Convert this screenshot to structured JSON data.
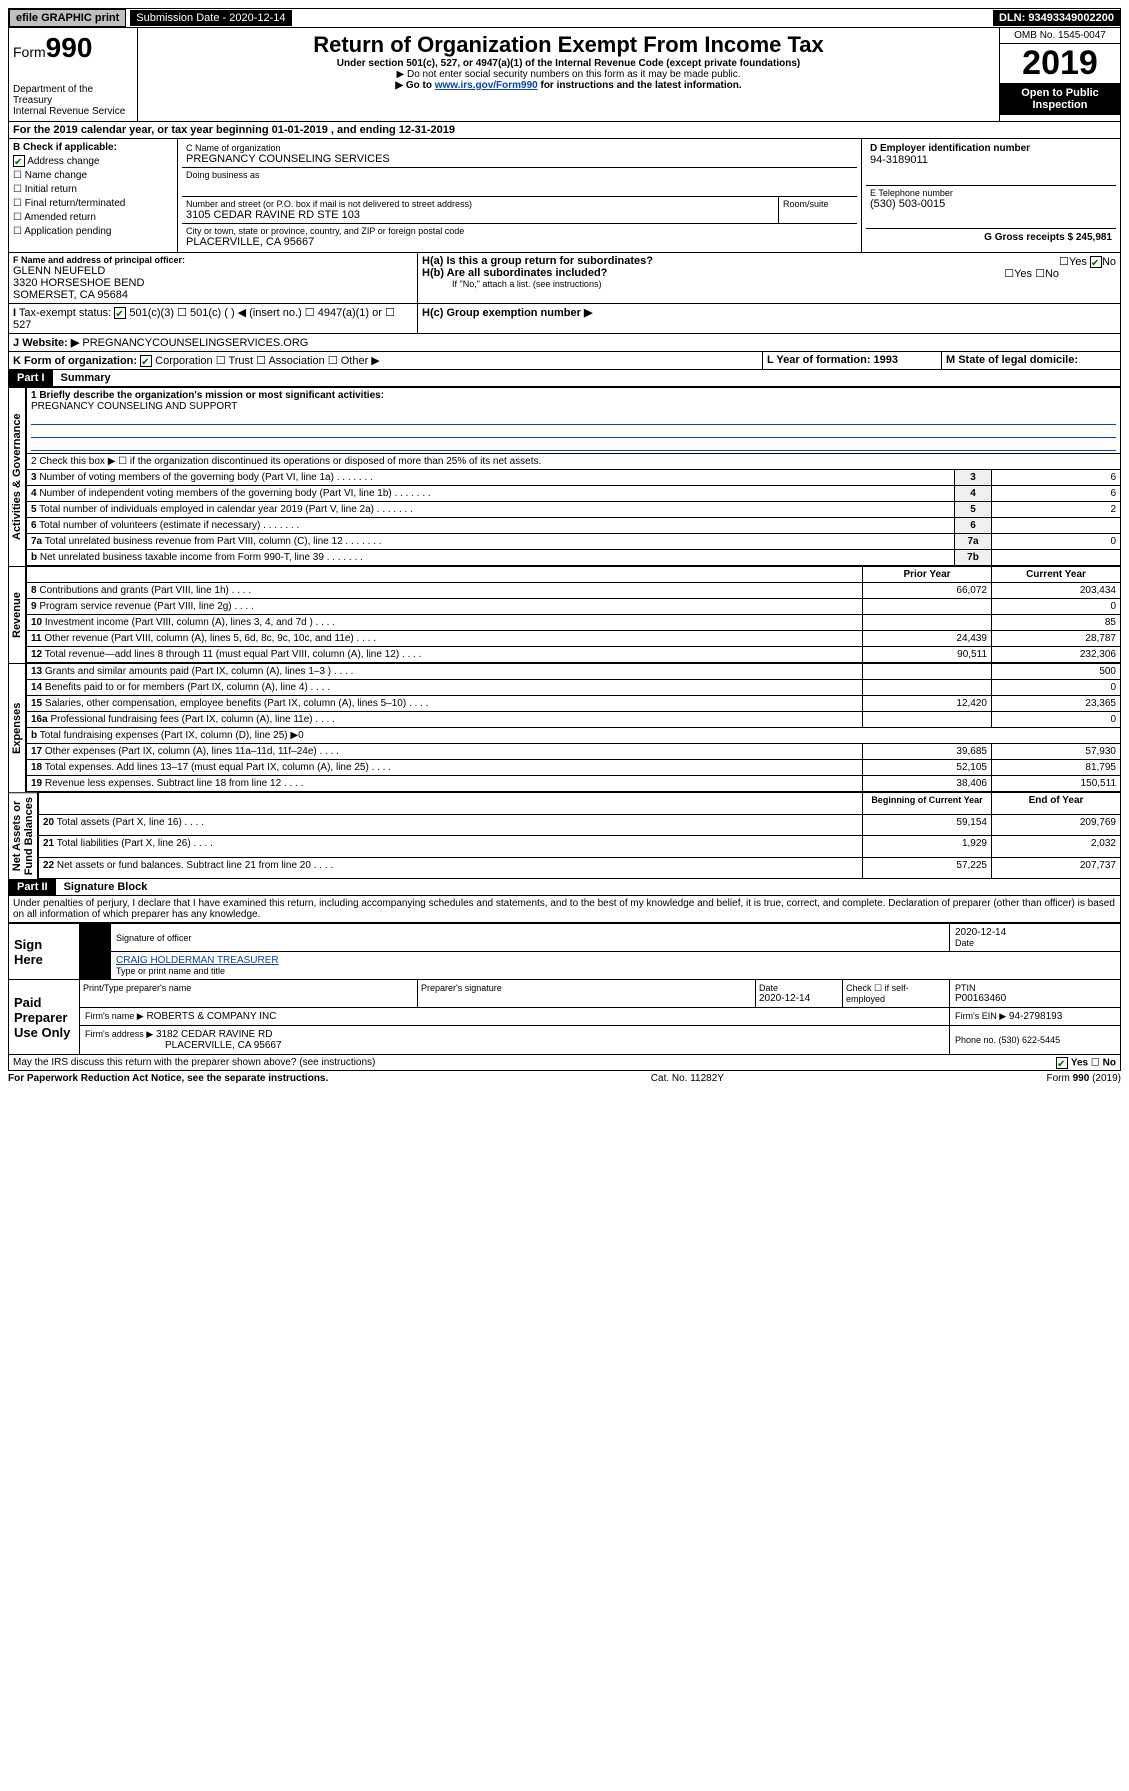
{
  "topbar": {
    "efile": "efile GRAPHIC print",
    "subdate_lbl": "Submission Date - 2020-12-14",
    "dln": "DLN: 93493349002200"
  },
  "hdr": {
    "form_pre": "Form",
    "form_no": "990",
    "title": "Return of Organization Exempt From Income Tax",
    "sub1": "Under section 501(c), 527, or 4947(a)(1) of the Internal Revenue Code (except private foundations)",
    "sub2": "▶ Do not enter social security numbers on this form as it may be made public.",
    "sub3a": "▶ Go to ",
    "sub3link": "www.irs.gov/Form990",
    "sub3b": " for instructions and the latest information.",
    "dept": "Department of the Treasury\nInternal Revenue Service",
    "omb": "OMB No. 1545-0047",
    "year": "2019",
    "otp": "Open to Public Inspection"
  },
  "a_line": "For the 2019 calendar year, or tax year beginning 01-01-2019    , and ending 12-31-2019",
  "b": {
    "hdr": "B Check if applicable:",
    "items": [
      "Address change",
      "Name change",
      "Initial return",
      "Final return/terminated",
      "Amended return",
      "Application pending"
    ],
    "checked": [
      true,
      false,
      false,
      false,
      false,
      false
    ]
  },
  "c": {
    "lbl": "C Name of organization",
    "name": "PREGNANCY COUNSELING SERVICES",
    "dba_lbl": "Doing business as",
    "addr_lbl": "Number and street (or P.O. box if mail is not delivered to street address)",
    "room_lbl": "Room/suite",
    "addr": "3105 CEDAR RAVINE RD STE 103",
    "city_lbl": "City or town, state or province, country, and ZIP or foreign postal code",
    "city": "PLACERVILLE, CA  95667"
  },
  "d": {
    "lbl": "D Employer identification number",
    "val": "94-3189011"
  },
  "e": {
    "lbl": "E Telephone number",
    "val": "(530) 503-0015"
  },
  "g": {
    "lbl": "G Gross receipts $ 245,981"
  },
  "f": {
    "lbl": "F  Name and address of principal officer:",
    "name": "GLENN NEUFELD",
    "l1": "3320 HORSESHOE BEND",
    "l2": "SOMERSET, CA  95684"
  },
  "h": {
    "a": "H(a)  Is this a group return for subordinates?",
    "b": "H(b)  Are all subordinates included?",
    "note": "If \"No,\" attach a list. (see instructions)",
    "c": "H(c)  Group exemption number ▶",
    "yes": "Yes",
    "no": "No"
  },
  "i": {
    "lbl": "Tax-exempt status:",
    "o1": "501(c)(3)",
    "o2": "501(c) (  ) ◀ (insert no.)",
    "o3": "4947(a)(1) or",
    "o4": "527"
  },
  "j": {
    "lbl": "Website: ▶",
    "val": "PREGNANCYCOUNSELINGSERVICES.ORG"
  },
  "k": {
    "lbl": "K Form of organization:",
    "o1": "Corporation",
    "o2": "Trust",
    "o3": "Association",
    "o4": "Other ▶"
  },
  "l": {
    "lbl": "L Year of formation: 1993"
  },
  "m": {
    "lbl": "M State of legal domicile:"
  },
  "p1": {
    "hdr": "Part I",
    "title": "Summary",
    "q1": "1  Briefly describe the organization's mission or most significant activities:",
    "q1v": "PREGNANCY COUNSELING AND SUPPORT",
    "q2": "2    Check this box ▶ ☐  if the organization discontinued its operations or disposed of more than 25% of its net assets.",
    "rows_top": [
      {
        "n": "3",
        "t": "Number of voting members of the governing body (Part VI, line 1a)",
        "i": "3",
        "v": "6"
      },
      {
        "n": "4",
        "t": "Number of independent voting members of the governing body (Part VI, line 1b)",
        "i": "4",
        "v": "6"
      },
      {
        "n": "5",
        "t": "Total number of individuals employed in calendar year 2019 (Part V, line 2a)",
        "i": "5",
        "v": "2"
      },
      {
        "n": "6",
        "t": "Total number of volunteers (estimate if necessary)",
        "i": "6",
        "v": ""
      },
      {
        "n": "7a",
        "t": "Total unrelated business revenue from Part VIII, column (C), line 12",
        "i": "7a",
        "v": "0"
      },
      {
        "n": "b",
        "t": "Net unrelated business taxable income from Form 990-T, line 39",
        "i": "7b",
        "v": ""
      }
    ],
    "col_py": "Prior Year",
    "col_cy": "Current Year",
    "rev": [
      {
        "n": "8",
        "t": "Contributions and grants (Part VIII, line 1h)",
        "p": "66,072",
        "c": "203,434"
      },
      {
        "n": "9",
        "t": "Program service revenue (Part VIII, line 2g)",
        "p": "",
        "c": "0"
      },
      {
        "n": "10",
        "t": "Investment income (Part VIII, column (A), lines 3, 4, and 7d )",
        "p": "",
        "c": "85"
      },
      {
        "n": "11",
        "t": "Other revenue (Part VIII, column (A), lines 5, 6d, 8c, 9c, 10c, and 11e)",
        "p": "24,439",
        "c": "28,787"
      },
      {
        "n": "12",
        "t": "Total revenue—add lines 8 through 11 (must equal Part VIII, column (A), line 12)",
        "p": "90,511",
        "c": "232,306"
      }
    ],
    "exp": [
      {
        "n": "13",
        "t": "Grants and similar amounts paid (Part IX, column (A), lines 1–3 )",
        "p": "",
        "c": "500"
      },
      {
        "n": "14",
        "t": "Benefits paid to or for members (Part IX, column (A), line 4)",
        "p": "",
        "c": "0"
      },
      {
        "n": "15",
        "t": "Salaries, other compensation, employee benefits (Part IX, column (A), lines 5–10)",
        "p": "12,420",
        "c": "23,365"
      },
      {
        "n": "16a",
        "t": "Professional fundraising fees (Part IX, column (A), line 11e)",
        "p": "",
        "c": "0"
      },
      {
        "n": "b",
        "t": "Total fundraising expenses (Part IX, column (D), line 25) ▶0",
        "p": null,
        "c": null
      },
      {
        "n": "17",
        "t": "Other expenses (Part IX, column (A), lines 11a–11d, 11f–24e)",
        "p": "39,685",
        "c": "57,930"
      },
      {
        "n": "18",
        "t": "Total expenses. Add lines 13–17 (must equal Part IX, column (A), line 25)",
        "p": "52,105",
        "c": "81,795"
      },
      {
        "n": "19",
        "t": "Revenue less expenses. Subtract line 18 from line 12",
        "p": "38,406",
        "c": "150,511"
      }
    ],
    "col_by": "Beginning of Current Year",
    "col_ey": "End of Year",
    "na": [
      {
        "n": "20",
        "t": "Total assets (Part X, line 16)",
        "p": "59,154",
        "c": "209,769"
      },
      {
        "n": "21",
        "t": "Total liabilities (Part X, line 26)",
        "p": "1,929",
        "c": "2,032"
      },
      {
        "n": "22",
        "t": "Net assets or fund balances. Subtract line 21 from line 20",
        "p": "57,225",
        "c": "207,737"
      }
    ],
    "side": {
      "ag": "Activities & Governance",
      "rev": "Revenue",
      "exp": "Expenses",
      "na": "Net Assets or\nFund Balances"
    }
  },
  "p2": {
    "hdr": "Part II",
    "title": "Signature Block",
    "decl": "Under penalties of perjury, I declare that I have examined this return, including accompanying schedules and statements, and to the best of my knowledge and belief, it is true, correct, and complete. Declaration of preparer (other than officer) is based on all information of which preparer has any knowledge.",
    "sign_here": "Sign Here",
    "sig_of": "Signature of officer",
    "date": "2020-12-14",
    "date_lbl": "Date",
    "name": "CRAIG HOLDERMAN  TREASURER",
    "name_lbl": "Type or print name and title",
    "paid": "Paid Preparer Use Only",
    "pp_name_lbl": "Print/Type preparer's name",
    "pp_sig_lbl": "Preparer's signature",
    "pp_date_lbl": "Date",
    "pp_date": "2020-12-14",
    "pp_check": "Check ☐ if self-employed",
    "ptin_lbl": "PTIN",
    "ptin": "P00163460",
    "firm_name_lbl": "Firm's name   ▶",
    "firm_name": "ROBERTS & COMPANY INC",
    "firm_ein_lbl": "Firm's EIN ▶",
    "firm_ein": "94-2798193",
    "firm_addr_lbl": "Firm's address ▶",
    "firm_addr1": "3182 CEDAR RAVINE RD",
    "firm_addr2": "PLACERVILLE, CA  95667",
    "phone_lbl": "Phone no. (530) 622-5445",
    "discuss": "May the IRS discuss this return with the preparer shown above? (see instructions)"
  },
  "foot": {
    "l": "For Paperwork Reduction Act Notice, see the separate instructions.",
    "m": "Cat. No. 11282Y",
    "r": "Form 990 (2019)"
  }
}
